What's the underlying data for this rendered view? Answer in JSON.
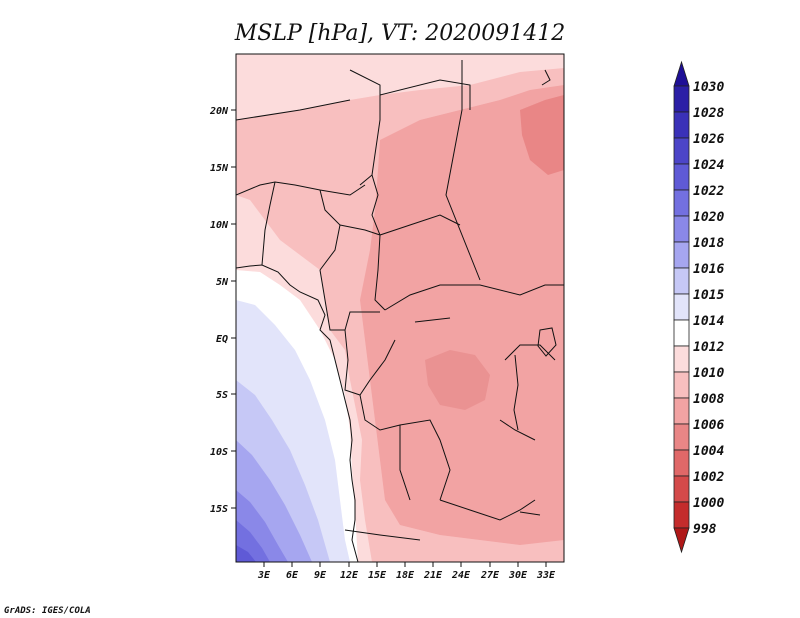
{
  "title": "MSLP [hPa], VT: 2020091412",
  "footer": "GrADS: IGES/COLA",
  "map": {
    "variable": "MSLP",
    "units": "hPa",
    "valid_time": "2020091412",
    "lon_labels": [
      "3E",
      "6E",
      "9E",
      "12E",
      "15E",
      "18E",
      "21E",
      "24E",
      "27E",
      "30E",
      "33E"
    ],
    "lat_labels": [
      "20N",
      "15N",
      "10N",
      "5N",
      "EQ",
      "5S",
      "10S",
      "15S"
    ]
  },
  "colorbar": {
    "levels": [
      "1030",
      "1028",
      "1026",
      "1024",
      "1022",
      "1020",
      "1018",
      "1016",
      "1015",
      "1014",
      "1012",
      "1010",
      "1008",
      "1006",
      "1004",
      "1002",
      "1000",
      "998"
    ],
    "colors": [
      "#1e0f96",
      "#2b1fa6",
      "#3a31b8",
      "#4c45c8",
      "#5f5ad6",
      "#7370e0",
      "#8a88e8",
      "#a6a6f0",
      "#c6c8f6",
      "#e2e4fa",
      "#ffffff",
      "#fcdcdc",
      "#f8bfbf",
      "#f2a3a3",
      "#e98686",
      "#e06868",
      "#d44a4a",
      "#c42c2c",
      "#b01818"
    ]
  }
}
